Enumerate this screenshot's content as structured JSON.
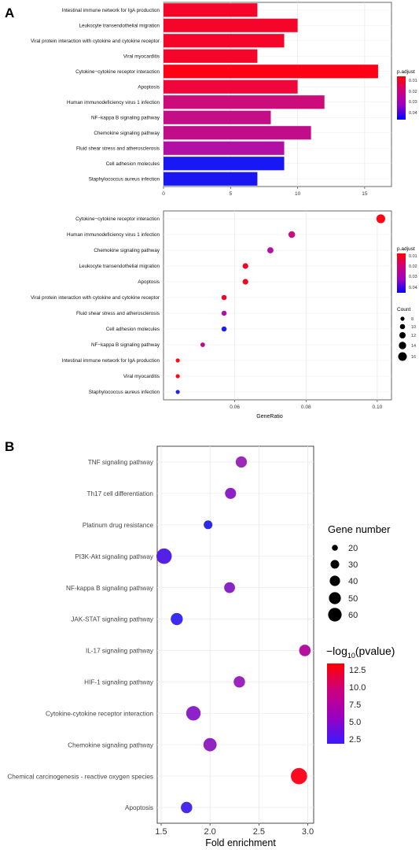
{
  "figure": {
    "panel_labels": [
      "A",
      "B"
    ]
  },
  "chart_data": [
    {
      "id": "A1",
      "type": "bar",
      "orientation": "horizontal",
      "categories": [
        "Intestinal immune network for IgA production",
        "Leukocyte transendothelial migration",
        "Viral protein interaction with cytokine and cytokine receptor",
        "Viral myocarditis",
        "Cytokine−cytokine receptor interaction",
        "Apoptosis",
        "Human immunodeficiency virus 1 infection",
        "NF−kappa B signaling pathway",
        "Chemokine signaling pathway",
        "Fluid shear stress and atherosclerosis",
        "Cell adhesion molecules",
        "Staphylococcus aureus infection"
      ],
      "values": [
        7,
        10,
        9,
        7,
        16,
        10,
        12,
        8,
        11,
        9,
        9,
        7
      ],
      "padjust": [
        0.01,
        0.01,
        0.01,
        0.01,
        0.01,
        0.012,
        0.022,
        0.025,
        0.027,
        0.03,
        0.045,
        0.045
      ],
      "colors": [
        "#f5052a",
        "#f5052a",
        "#f5052a",
        "#f5052a",
        "#fe0117",
        "#f0063a",
        "#cc0c7a",
        "#c40e86",
        "#c10d8a",
        "#b210a4",
        "#1818f4",
        "#1a16f2"
      ],
      "xlim": [
        0,
        17
      ],
      "xticks": [
        0,
        5,
        10,
        15
      ],
      "grid": true,
      "legend": {
        "title": "p.adjust",
        "labels": [
          "0.01",
          "0.02",
          "0.03",
          "0.04"
        ],
        "gradient": [
          "#ff0000",
          "#cc0080",
          "#9a00c0",
          "#0000ff"
        ],
        "placement": "right"
      }
    },
    {
      "id": "A2",
      "type": "scatter",
      "categories": [
        "Cytokine−cytokine receptor interaction",
        "Human immunodeficiency virus 1 infection",
        "Chemokine signaling pathway",
        "Leukocyte transendothelial migration",
        "Apoptosis",
        "Viral protein interaction with cytokine and cytokine receptor",
        "Fluid shear stress and atherosclerosis",
        "Cell adhesion molecules",
        "NF−kappa B signaling pathway",
        "Intestinal immune network for IgA production",
        "Viral myocarditis",
        "Staphylococcus aureus infection"
      ],
      "x": [
        0.101,
        0.076,
        0.07,
        0.063,
        0.063,
        0.057,
        0.057,
        0.057,
        0.051,
        0.044,
        0.044,
        0.044
      ],
      "counts": [
        16,
        12,
        11,
        10,
        10,
        9,
        9,
        9,
        8,
        7,
        7,
        7
      ],
      "colors": [
        "#ff0516",
        "#cd0c80",
        "#b610a0",
        "#ef0624",
        "#ef0624",
        "#ee0627",
        "#b010a8",
        "#1c1cf0",
        "#c10c88",
        "#ff0a1a",
        "#ff0a1a",
        "#2222ee"
      ],
      "xlabel": "GeneRatio",
      "xlim": [
        0.04,
        0.104
      ],
      "xticks": [
        "0.06",
        "0.08",
        "0.10"
      ],
      "grid": true,
      "legend_color": {
        "title": "p.adjust",
        "labels": [
          "0.01",
          "0.02",
          "0.03",
          "0.04"
        ],
        "gradient": [
          "#ff0000",
          "#cc0080",
          "#9a00c0",
          "#0000ff"
        ],
        "placement": "right"
      },
      "legend_size": {
        "title": "Count",
        "labels": [
          "8",
          "10",
          "12",
          "14",
          "16"
        ],
        "placement": "right"
      }
    },
    {
      "id": "B",
      "type": "scatter",
      "categories": [
        "TNF signaling pathway",
        "Th17 cell differentiation",
        "Platinum drug resistance",
        "PI3K-Akt signaling pathway",
        "NF-kappa B signaling pathway",
        "JAK-STAT signaling pathway",
        "IL-17 signaling pathway",
        "HIF-1 signaling pathway",
        "Cytokine-cytokine receptor interaction",
        "Chemokine signaling pathway",
        "Chemical carcinogenesis - reactive oxygen species",
        "Apoptosis"
      ],
      "x": [
        2.32,
        2.21,
        1.98,
        1.53,
        2.2,
        1.66,
        2.97,
        2.3,
        1.83,
        2.0,
        2.91,
        1.76
      ],
      "gene_number": [
        22,
        21,
        10,
        52,
        20,
        27,
        24,
        23,
        44,
        35,
        60,
        23
      ],
      "neg_log10_p": [
        6.3,
        5.5,
        2.2,
        3.2,
        5.2,
        2.2,
        8.1,
        6.2,
        5.3,
        5.5,
        13.1,
        2.8
      ],
      "colors": [
        "#9b2ab8",
        "#8e20c8",
        "#2a2ae8",
        "#5320e6",
        "#8a24c6",
        "#3a2cf0",
        "#b4129e",
        "#9a26bc",
        "#8c22c8",
        "#9224c2",
        "#ff0a22",
        "#4a2ae8"
      ],
      "xlabel": "Fold enrichment",
      "xlim": [
        1.46,
        3.06
      ],
      "xticks": [
        "1.5",
        "2.0",
        "2.5",
        "3.0"
      ],
      "grid": true,
      "legend_size": {
        "title": "Gene number",
        "labels": [
          "20",
          "30",
          "40",
          "50",
          "60"
        ],
        "placement": "right"
      },
      "legend_color": {
        "title": "−log",
        "title_sub": "10",
        "title_tail": "(pvalue)",
        "labels": [
          "12.5",
          "10.0",
          "7.5",
          "5.0",
          "2.5"
        ],
        "gradient": [
          "#ff0000",
          "#cc0080",
          "#9a00c0",
          "#3a1aff"
        ],
        "placement": "right"
      }
    }
  ]
}
